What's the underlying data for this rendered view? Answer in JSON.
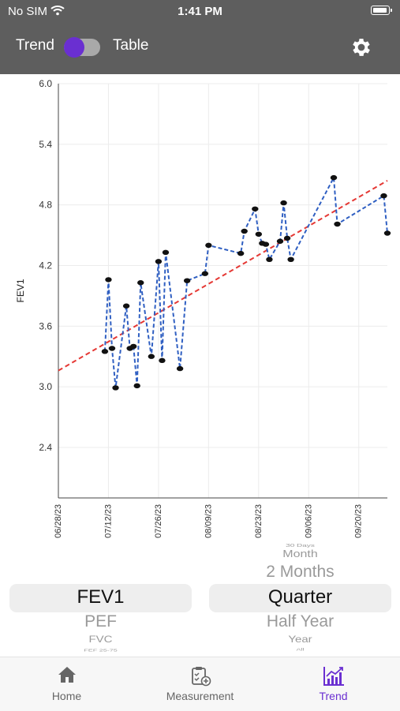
{
  "status_bar": {
    "carrier": "No SIM",
    "time": "1:41 PM"
  },
  "header": {
    "toggle_left_label": "Trend",
    "toggle_right_label": "Table",
    "toggle_state": "Trend"
  },
  "chart_data": {
    "type": "line",
    "title": "",
    "ylabel": "FEV1",
    "xlabel": "",
    "ylim": [
      1.9,
      6.0
    ],
    "yticks": [
      "6.0",
      "5.4",
      "4.8",
      "4.2",
      "3.6",
      "3.0",
      "2.4"
    ],
    "xticks": [
      "06/28/23",
      "07/12/23",
      "07/26/23",
      "08/09/23",
      "08/23/23",
      "09/06/23",
      "09/20/23"
    ],
    "grid": true,
    "series": [
      {
        "style": "dashed",
        "color": "#2f5fc2",
        "points": [
          [
            "2023-07-11",
            3.35
          ],
          [
            "2023-07-12",
            4.06
          ],
          [
            "2023-07-13",
            3.38
          ],
          [
            "2023-07-14",
            2.99
          ],
          [
            "2023-07-17",
            3.8
          ],
          [
            "2023-07-18",
            3.38
          ],
          [
            "2023-07-19",
            3.4
          ],
          [
            "2023-07-20",
            3.01
          ],
          [
            "2023-07-21",
            4.03
          ],
          [
            "2023-07-24",
            3.3
          ],
          [
            "2023-07-26",
            4.24
          ],
          [
            "2023-07-27",
            3.26
          ],
          [
            "2023-07-28",
            4.33
          ],
          [
            "2023-08-01",
            3.18
          ],
          [
            "2023-08-03",
            4.05
          ],
          [
            "2023-08-08",
            4.12
          ],
          [
            "2023-08-09",
            4.4
          ],
          [
            "2023-08-18",
            4.32
          ],
          [
            "2023-08-19",
            4.54
          ],
          [
            "2023-08-22",
            4.76
          ],
          [
            "2023-08-23",
            4.51
          ],
          [
            "2023-08-24",
            4.42
          ],
          [
            "2023-08-25",
            4.41
          ],
          [
            "2023-08-26",
            4.26
          ],
          [
            "2023-08-29",
            4.44
          ],
          [
            "2023-08-30",
            4.82
          ],
          [
            "2023-08-31",
            4.47
          ],
          [
            "2023-09-01",
            4.26
          ],
          [
            "2023-09-13",
            5.07
          ],
          [
            "2023-09-14",
            4.61
          ],
          [
            "2023-09-27",
            4.89
          ],
          [
            "2023-09-28",
            4.52
          ]
        ]
      },
      {
        "style": "dashed",
        "color": "#e53935",
        "points": [
          [
            "2023-06-28",
            3.16
          ],
          [
            "2023-09-28",
            5.04
          ]
        ]
      }
    ]
  },
  "picker_left": {
    "above": "",
    "selected": "FEV1",
    "below": [
      "PEF",
      "FVC",
      "FEF 25-75"
    ]
  },
  "picker_right": {
    "above": [
      "30 Days",
      "Month",
      "2 Months"
    ],
    "selected": "Quarter",
    "below": [
      "Half Year",
      "Year",
      "All"
    ]
  },
  "tabs": [
    {
      "label": "Home",
      "icon": "home-icon",
      "active": false
    },
    {
      "label": "Measurement",
      "icon": "clipboard-icon",
      "active": false
    },
    {
      "label": "Trend",
      "icon": "trend-chart-icon",
      "active": true
    }
  ],
  "colors": {
    "header": "#5e5e5e",
    "accent": "#6a2fd1"
  }
}
